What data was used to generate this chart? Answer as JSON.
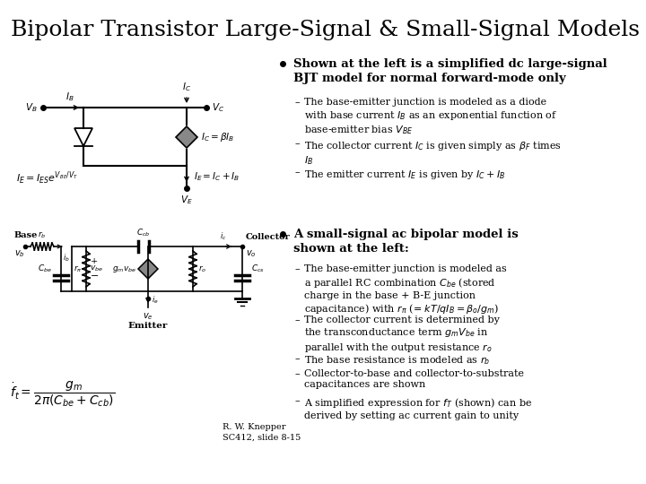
{
  "title": "Bipolar Transistor Large-Signal & Small-Signal Models",
  "title_fontsize": 18,
  "background_color": "#ffffff",
  "text_color": "#000000",
  "b1_header": "Shown at the left is a simplified dc large-signal\nBJT model for normal forward-mode only",
  "b1_i1": "The base-emitter junction is modeled as a diode\nwith base current $I_B$ as an exponential function of\nbase-emitter bias $V_{BE}$",
  "b1_i2": "The collector current $I_C$ is given simply as $\\beta_F$ times\n$I_B$",
  "b1_i3": "The emitter current $I_E$ is given by $I_C + I_B$",
  "b2_header": "A small-signal ac bipolar model is\nshown at the left:",
  "b2_i1": "The base-emitter junction is modeled as\na parallel RC combination $C_{be}$ (stored\ncharge in the base + B-E junction\ncapacitance) with $r_{\\pi}$ (= $kT/qI_B = \\beta_o/g_m$)",
  "b2_i2": "The collector current is determined by\nthe transconductance term $g_mV_{be}$ in\nparallel with the output resistance $r_o$",
  "b2_i3": "The base resistance is modeled as $r_b$",
  "b2_i4": "Collector-to-base and collector-to-substrate\ncapacitances are shown",
  "b2_i5": "A simplified expression for $f_T$ (shown) can be\nderived by setting ac current gain to unity",
  "attribution": "R. W. Knepper\nSC412, slide 8-15"
}
